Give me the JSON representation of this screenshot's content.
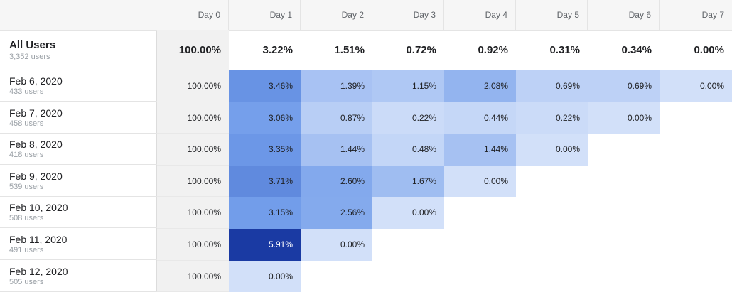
{
  "header": {
    "days": [
      "Day 0",
      "Day 1",
      "Day 2",
      "Day 3",
      "Day 4",
      "Day 5",
      "Day 6",
      "Day 7"
    ]
  },
  "all_users": {
    "title": "All Users",
    "count": "3,352 users",
    "values": [
      "100.00%",
      "3.22%",
      "1.51%",
      "0.72%",
      "0.92%",
      "0.31%",
      "0.34%",
      "0.00%"
    ]
  },
  "cohorts": [
    {
      "date": "Feb 6, 2020",
      "users": "433 users",
      "values": [
        "100.00%",
        "3.46%",
        "1.39%",
        "1.15%",
        "2.08%",
        "0.69%",
        "0.69%",
        "0.00%"
      ]
    },
    {
      "date": "Feb 7, 2020",
      "users": "458 users",
      "values": [
        "100.00%",
        "3.06%",
        "0.87%",
        "0.22%",
        "0.44%",
        "0.22%",
        "0.00%"
      ]
    },
    {
      "date": "Feb 8, 2020",
      "users": "418 users",
      "values": [
        "100.00%",
        "3.35%",
        "1.44%",
        "0.48%",
        "1.44%",
        "0.00%"
      ]
    },
    {
      "date": "Feb 9, 2020",
      "users": "539 users",
      "values": [
        "100.00%",
        "3.71%",
        "2.60%",
        "1.67%",
        "0.00%"
      ]
    },
    {
      "date": "Feb 10, 2020",
      "users": "508 users",
      "values": [
        "100.00%",
        "3.15%",
        "2.56%",
        "0.00%"
      ]
    },
    {
      "date": "Feb 11, 2020",
      "users": "491 users",
      "values": [
        "100.00%",
        "5.91%",
        "0.00%"
      ]
    },
    {
      "date": "Feb 12, 2020",
      "users": "505 users",
      "values": [
        "100.00%",
        "0.00%"
      ]
    }
  ],
  "colors": {
    "scale_light": "#d2e0f9",
    "scale_mid": "#6f9bea",
    "scale_dark": "#1a3aa3",
    "day0_bg": "#f1f1f1",
    "header_bg": "#f6f6f6"
  }
}
